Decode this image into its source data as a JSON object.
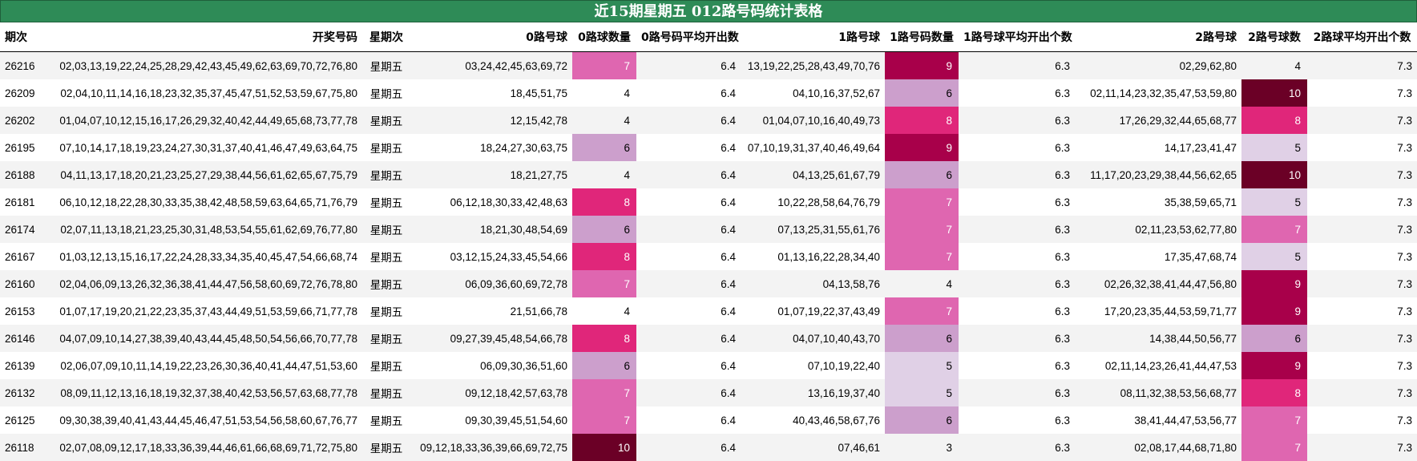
{
  "title": "近15期星期五 012路号码统计表格",
  "headers": [
    "期次",
    "开奖号码",
    "星期次",
    "0路号球",
    "0路球数量",
    "0路号码平均开出数",
    "1路号球",
    "1路号码数量",
    "1路号球平均开出个数",
    "2路号球",
    "2路号球数",
    "2路球平均开出个数"
  ],
  "heat_colors": {
    "3": "#f6f2f7",
    "4": "#f6f2f7",
    "5": "#e0d0e6",
    "6": "#cc9fcc",
    "7": "#df66b0",
    "8": "#e0267a",
    "9": "#a8004a",
    "10": "#6b0026"
  },
  "rows": [
    {
      "id": "26216",
      "nums": "02,03,13,19,22,24,25,28,29,42,43,45,49,62,63,69,70,72,76,80",
      "day": "星期五",
      "r0": "03,24,42,45,63,69,72",
      "c0": "7",
      "a0": "6.4",
      "r1": "13,19,22,25,28,43,49,70,76",
      "c1": "9",
      "a1": "6.3",
      "r2": "02,29,62,80",
      "c2": "4",
      "a2": "7.3"
    },
    {
      "id": "26209",
      "nums": "02,04,10,11,14,16,18,23,32,35,37,45,47,51,52,53,59,67,75,80",
      "day": "星期五",
      "r0": "18,45,51,75",
      "c0": "4",
      "a0": "6.4",
      "r1": "04,10,16,37,52,67",
      "c1": "6",
      "a1": "6.3",
      "r2": "02,11,14,23,32,35,47,53,59,80",
      "c2": "10",
      "a2": "7.3"
    },
    {
      "id": "26202",
      "nums": "01,04,07,10,12,15,16,17,26,29,32,40,42,44,49,65,68,73,77,78",
      "day": "星期五",
      "r0": "12,15,42,78",
      "c0": "4",
      "a0": "6.4",
      "r1": "01,04,07,10,16,40,49,73",
      "c1": "8",
      "a1": "6.3",
      "r2": "17,26,29,32,44,65,68,77",
      "c2": "8",
      "a2": "7.3"
    },
    {
      "id": "26195",
      "nums": "07,10,14,17,18,19,23,24,27,30,31,37,40,41,46,47,49,63,64,75",
      "day": "星期五",
      "r0": "18,24,27,30,63,75",
      "c0": "6",
      "a0": "6.4",
      "r1": "07,10,19,31,37,40,46,49,64",
      "c1": "9",
      "a1": "6.3",
      "r2": "14,17,23,41,47",
      "c2": "5",
      "a2": "7.3"
    },
    {
      "id": "26188",
      "nums": "04,11,13,17,18,20,21,23,25,27,29,38,44,56,61,62,65,67,75,79",
      "day": "星期五",
      "r0": "18,21,27,75",
      "c0": "4",
      "a0": "6.4",
      "r1": "04,13,25,61,67,79",
      "c1": "6",
      "a1": "6.3",
      "r2": "11,17,20,23,29,38,44,56,62,65",
      "c2": "10",
      "a2": "7.3"
    },
    {
      "id": "26181",
      "nums": "06,10,12,18,22,28,30,33,35,38,42,48,58,59,63,64,65,71,76,79",
      "day": "星期五",
      "r0": "06,12,18,30,33,42,48,63",
      "c0": "8",
      "a0": "6.4",
      "r1": "10,22,28,58,64,76,79",
      "c1": "7",
      "a1": "6.3",
      "r2": "35,38,59,65,71",
      "c2": "5",
      "a2": "7.3"
    },
    {
      "id": "26174",
      "nums": "02,07,11,13,18,21,23,25,30,31,48,53,54,55,61,62,69,76,77,80",
      "day": "星期五",
      "r0": "18,21,30,48,54,69",
      "c0": "6",
      "a0": "6.4",
      "r1": "07,13,25,31,55,61,76",
      "c1": "7",
      "a1": "6.3",
      "r2": "02,11,23,53,62,77,80",
      "c2": "7",
      "a2": "7.3"
    },
    {
      "id": "26167",
      "nums": "01,03,12,13,15,16,17,22,24,28,33,34,35,40,45,47,54,66,68,74",
      "day": "星期五",
      "r0": "03,12,15,24,33,45,54,66",
      "c0": "8",
      "a0": "6.4",
      "r1": "01,13,16,22,28,34,40",
      "c1": "7",
      "a1": "6.3",
      "r2": "17,35,47,68,74",
      "c2": "5",
      "a2": "7.3"
    },
    {
      "id": "26160",
      "nums": "02,04,06,09,13,26,32,36,38,41,44,47,56,58,60,69,72,76,78,80",
      "day": "星期五",
      "r0": "06,09,36,60,69,72,78",
      "c0": "7",
      "a0": "6.4",
      "r1": "04,13,58,76",
      "c1": "4",
      "a1": "6.3",
      "r2": "02,26,32,38,41,44,47,56,80",
      "c2": "9",
      "a2": "7.3"
    },
    {
      "id": "26153",
      "nums": "01,07,17,19,20,21,22,23,35,37,43,44,49,51,53,59,66,71,77,78",
      "day": "星期五",
      "r0": "21,51,66,78",
      "c0": "4",
      "a0": "6.4",
      "r1": "01,07,19,22,37,43,49",
      "c1": "7",
      "a1": "6.3",
      "r2": "17,20,23,35,44,53,59,71,77",
      "c2": "9",
      "a2": "7.3"
    },
    {
      "id": "26146",
      "nums": "04,07,09,10,14,27,38,39,40,43,44,45,48,50,54,56,66,70,77,78",
      "day": "星期五",
      "r0": "09,27,39,45,48,54,66,78",
      "c0": "8",
      "a0": "6.4",
      "r1": "04,07,10,40,43,70",
      "c1": "6",
      "a1": "6.3",
      "r2": "14,38,44,50,56,77",
      "c2": "6",
      "a2": "7.3"
    },
    {
      "id": "26139",
      "nums": "02,06,07,09,10,11,14,19,22,23,26,30,36,40,41,44,47,51,53,60",
      "day": "星期五",
      "r0": "06,09,30,36,51,60",
      "c0": "6",
      "a0": "6.4",
      "r1": "07,10,19,22,40",
      "c1": "5",
      "a1": "6.3",
      "r2": "02,11,14,23,26,41,44,47,53",
      "c2": "9",
      "a2": "7.3"
    },
    {
      "id": "26132",
      "nums": "08,09,11,12,13,16,18,19,32,37,38,40,42,53,56,57,63,68,77,78",
      "day": "星期五",
      "r0": "09,12,18,42,57,63,78",
      "c0": "7",
      "a0": "6.4",
      "r1": "13,16,19,37,40",
      "c1": "5",
      "a1": "6.3",
      "r2": "08,11,32,38,53,56,68,77",
      "c2": "8",
      "a2": "7.3"
    },
    {
      "id": "26125",
      "nums": "09,30,38,39,40,41,43,44,45,46,47,51,53,54,56,58,60,67,76,77",
      "day": "星期五",
      "r0": "09,30,39,45,51,54,60",
      "c0": "7",
      "a0": "6.4",
      "r1": "40,43,46,58,67,76",
      "c1": "6",
      "a1": "6.3",
      "r2": "38,41,44,47,53,56,77",
      "c2": "7",
      "a2": "7.3"
    },
    {
      "id": "26118",
      "nums": "02,07,08,09,12,17,18,33,36,39,44,46,61,66,68,69,71,72,75,80",
      "day": "星期五",
      "r0": "09,12,18,33,36,39,66,69,72,75",
      "c0": "10",
      "a0": "6.4",
      "r1": "07,46,61",
      "c1": "3",
      "a1": "6.3",
      "r2": "02,08,17,44,68,71,80",
      "c2": "7",
      "a2": "7.3"
    }
  ]
}
